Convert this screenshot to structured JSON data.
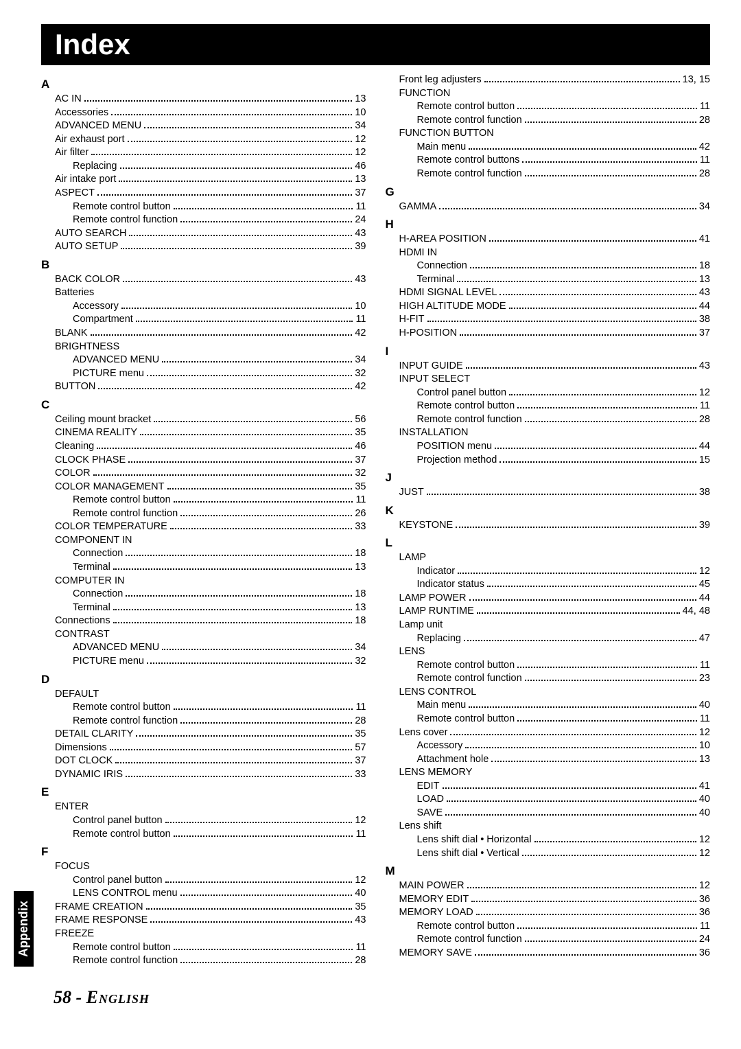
{
  "title": "Index",
  "side_tab": "Appendix",
  "footer_page": "58",
  "footer_lang": "English",
  "columns": [
    {
      "sections": [
        {
          "letter": "A",
          "entries": [
            {
              "lvl": 1,
              "label": "AC IN",
              "page": "13"
            },
            {
              "lvl": 1,
              "label": "Accessories",
              "page": "10"
            },
            {
              "lvl": 1,
              "label": "ADVANCED MENU",
              "page": "34"
            },
            {
              "lvl": 1,
              "label": "Air exhaust port",
              "page": "12"
            },
            {
              "lvl": 1,
              "label": "Air filter",
              "page": "12"
            },
            {
              "lvl": 2,
              "label": "Replacing",
              "page": "46"
            },
            {
              "lvl": 1,
              "label": "Air intake port",
              "page": "13"
            },
            {
              "lvl": 1,
              "label": "ASPECT",
              "page": "37"
            },
            {
              "lvl": 2,
              "label": "Remote control button",
              "page": "11"
            },
            {
              "lvl": 2,
              "label": "Remote control function",
              "page": "24"
            },
            {
              "lvl": 1,
              "label": "AUTO SEARCH",
              "page": "43"
            },
            {
              "lvl": 1,
              "label": "AUTO SETUP",
              "page": "39"
            }
          ]
        },
        {
          "letter": "B",
          "entries": [
            {
              "lvl": 1,
              "label": "BACK COLOR",
              "page": "43"
            },
            {
              "lvl": 1,
              "label": "Batteries",
              "page": ""
            },
            {
              "lvl": 2,
              "label": "Accessory",
              "page": "10"
            },
            {
              "lvl": 2,
              "label": "Compartment",
              "page": "11"
            },
            {
              "lvl": 1,
              "label": "BLANK",
              "page": "42"
            },
            {
              "lvl": 1,
              "label": "BRIGHTNESS",
              "page": ""
            },
            {
              "lvl": 2,
              "label": "ADVANCED MENU",
              "page": "34"
            },
            {
              "lvl": 2,
              "label": "PICTURE menu",
              "page": "32"
            },
            {
              "lvl": 1,
              "label": "BUTTON",
              "page": "42"
            }
          ]
        },
        {
          "letter": "C",
          "entries": [
            {
              "lvl": 1,
              "label": "Ceiling mount bracket",
              "page": "56"
            },
            {
              "lvl": 1,
              "label": "CINEMA REALITY",
              "page": "35"
            },
            {
              "lvl": 1,
              "label": "Cleaning",
              "page": "46"
            },
            {
              "lvl": 1,
              "label": "CLOCK PHASE",
              "page": "37"
            },
            {
              "lvl": 1,
              "label": "COLOR",
              "page": "32"
            },
            {
              "lvl": 1,
              "label": "COLOR MANAGEMENT",
              "page": "35"
            },
            {
              "lvl": 2,
              "label": "Remote control button",
              "page": "11"
            },
            {
              "lvl": 2,
              "label": "Remote control function",
              "page": "26"
            },
            {
              "lvl": 1,
              "label": "COLOR TEMPERATURE",
              "page": "33"
            },
            {
              "lvl": 1,
              "label": "COMPONENT IN",
              "page": ""
            },
            {
              "lvl": 2,
              "label": "Connection",
              "page": "18"
            },
            {
              "lvl": 2,
              "label": "Terminal",
              "page": "13"
            },
            {
              "lvl": 1,
              "label": "COMPUTER IN",
              "page": ""
            },
            {
              "lvl": 2,
              "label": "Connection",
              "page": "18"
            },
            {
              "lvl": 2,
              "label": "Terminal",
              "page": "13"
            },
            {
              "lvl": 1,
              "label": "Connections",
              "page": "18"
            },
            {
              "lvl": 1,
              "label": "CONTRAST",
              "page": ""
            },
            {
              "lvl": 2,
              "label": "ADVANCED MENU",
              "page": "34"
            },
            {
              "lvl": 2,
              "label": "PICTURE menu",
              "page": "32"
            }
          ]
        },
        {
          "letter": "D",
          "entries": [
            {
              "lvl": 1,
              "label": "DEFAULT",
              "page": ""
            },
            {
              "lvl": 2,
              "label": "Remote control button",
              "page": "11"
            },
            {
              "lvl": 2,
              "label": "Remote control function",
              "page": "28"
            },
            {
              "lvl": 1,
              "label": "DETAIL CLARITY",
              "page": "35"
            },
            {
              "lvl": 1,
              "label": "Dimensions",
              "page": "57"
            },
            {
              "lvl": 1,
              "label": "DOT CLOCK",
              "page": "37"
            },
            {
              "lvl": 1,
              "label": "DYNAMIC IRIS",
              "page": "33"
            }
          ]
        },
        {
          "letter": "E",
          "entries": [
            {
              "lvl": 1,
              "label": "ENTER",
              "page": ""
            },
            {
              "lvl": 2,
              "label": "Control panel button",
              "page": "12"
            },
            {
              "lvl": 2,
              "label": "Remote control button",
              "page": "11"
            }
          ]
        },
        {
          "letter": "F",
          "entries": [
            {
              "lvl": 1,
              "label": "FOCUS",
              "page": ""
            },
            {
              "lvl": 2,
              "label": "Control panel button",
              "page": "12"
            },
            {
              "lvl": 2,
              "label": "LENS CONTROL menu",
              "page": "40"
            },
            {
              "lvl": 1,
              "label": "FRAME CREATION",
              "page": "35"
            },
            {
              "lvl": 1,
              "label": "FRAME RESPONSE",
              "page": "43"
            },
            {
              "lvl": 1,
              "label": "FREEZE",
              "page": ""
            },
            {
              "lvl": 2,
              "label": "Remote control button",
              "page": "11"
            },
            {
              "lvl": 2,
              "label": "Remote control function",
              "page": "28"
            }
          ]
        }
      ]
    },
    {
      "sections": [
        {
          "letter": "",
          "entries": [
            {
              "lvl": 1,
              "label": "Front leg adjusters",
              "page": "13, 15"
            },
            {
              "lvl": 1,
              "label": "FUNCTION",
              "page": ""
            },
            {
              "lvl": 2,
              "label": "Remote control button",
              "page": "11"
            },
            {
              "lvl": 2,
              "label": "Remote control function",
              "page": "28"
            },
            {
              "lvl": 1,
              "label": "FUNCTION BUTTON",
              "page": ""
            },
            {
              "lvl": 2,
              "label": "Main menu",
              "page": "42"
            },
            {
              "lvl": 2,
              "label": "Remote control buttons",
              "page": "11"
            },
            {
              "lvl": 2,
              "label": "Remote control function",
              "page": "28"
            }
          ]
        },
        {
          "letter": "G",
          "entries": [
            {
              "lvl": 1,
              "label": "GAMMA",
              "page": "34"
            }
          ]
        },
        {
          "letter": "H",
          "entries": [
            {
              "lvl": 1,
              "label": "H-AREA POSITION",
              "page": "41"
            },
            {
              "lvl": 1,
              "label": "HDMI IN",
              "page": ""
            },
            {
              "lvl": 2,
              "label": "Connection",
              "page": "18"
            },
            {
              "lvl": 2,
              "label": "Terminal",
              "page": "13"
            },
            {
              "lvl": 1,
              "label": "HDMI SIGNAL LEVEL",
              "page": "43"
            },
            {
              "lvl": 1,
              "label": "HIGH ALTITUDE MODE",
              "page": "44"
            },
            {
              "lvl": 1,
              "label": "H-FIT",
              "page": "38"
            },
            {
              "lvl": 1,
              "label": "H-POSITION",
              "page": "37"
            }
          ]
        },
        {
          "letter": "I",
          "entries": [
            {
              "lvl": 1,
              "label": "INPUT GUIDE",
              "page": "43"
            },
            {
              "lvl": 1,
              "label": "INPUT SELECT",
              "page": ""
            },
            {
              "lvl": 2,
              "label": "Control panel button",
              "page": "12"
            },
            {
              "lvl": 2,
              "label": "Remote control button",
              "page": "11"
            },
            {
              "lvl": 2,
              "label": "Remote control function",
              "page": "28"
            },
            {
              "lvl": 1,
              "label": "INSTALLATION",
              "page": ""
            },
            {
              "lvl": 2,
              "label": "POSITION menu",
              "page": "44"
            },
            {
              "lvl": 2,
              "label": "Projection method",
              "page": "15"
            }
          ]
        },
        {
          "letter": "J",
          "entries": [
            {
              "lvl": 1,
              "label": "JUST",
              "page": "38"
            }
          ]
        },
        {
          "letter": "K",
          "entries": [
            {
              "lvl": 1,
              "label": "KEYSTONE",
              "page": "39"
            }
          ]
        },
        {
          "letter": "L",
          "entries": [
            {
              "lvl": 1,
              "label": "LAMP",
              "page": ""
            },
            {
              "lvl": 2,
              "label": "Indicator",
              "page": "12"
            },
            {
              "lvl": 2,
              "label": "Indicator status",
              "page": "45"
            },
            {
              "lvl": 1,
              "label": "LAMP POWER",
              "page": "44"
            },
            {
              "lvl": 1,
              "label": "LAMP RUNTIME",
              "page": "44, 48"
            },
            {
              "lvl": 1,
              "label": "Lamp unit",
              "page": ""
            },
            {
              "lvl": 2,
              "label": "Replacing",
              "page": "47"
            },
            {
              "lvl": 1,
              "label": "LENS",
              "page": ""
            },
            {
              "lvl": 2,
              "label": "Remote control button",
              "page": "11"
            },
            {
              "lvl": 2,
              "label": "Remote control function",
              "page": "23"
            },
            {
              "lvl": 1,
              "label": "LENS CONTROL",
              "page": ""
            },
            {
              "lvl": 2,
              "label": "Main menu",
              "page": "40"
            },
            {
              "lvl": 2,
              "label": "Remote control button",
              "page": "11"
            },
            {
              "lvl": 1,
              "label": "Lens cover",
              "page": "12"
            },
            {
              "lvl": 2,
              "label": "Accessory",
              "page": "10"
            },
            {
              "lvl": 2,
              "label": "Attachment hole",
              "page": "13"
            },
            {
              "lvl": 1,
              "label": "LENS MEMORY",
              "page": ""
            },
            {
              "lvl": 2,
              "label": "EDIT",
              "page": "41"
            },
            {
              "lvl": 2,
              "label": "LOAD",
              "page": "40"
            },
            {
              "lvl": 2,
              "label": "SAVE",
              "page": "40"
            },
            {
              "lvl": 1,
              "label": "Lens shift",
              "page": ""
            },
            {
              "lvl": 2,
              "label": "Lens shift dial • Horizontal",
              "page": "12"
            },
            {
              "lvl": 2,
              "label": "Lens shift dial • Vertical",
              "page": "12"
            }
          ]
        },
        {
          "letter": "M",
          "entries": [
            {
              "lvl": 1,
              "label": "MAIN POWER",
              "page": "12"
            },
            {
              "lvl": 1,
              "label": "MEMORY EDIT",
              "page": "36"
            },
            {
              "lvl": 1,
              "label": "MEMORY LOAD",
              "page": "36"
            },
            {
              "lvl": 2,
              "label": "Remote control button",
              "page": "11"
            },
            {
              "lvl": 2,
              "label": "Remote control function",
              "page": "24"
            },
            {
              "lvl": 1,
              "label": "MEMORY SAVE",
              "page": "36"
            }
          ]
        }
      ]
    }
  ]
}
